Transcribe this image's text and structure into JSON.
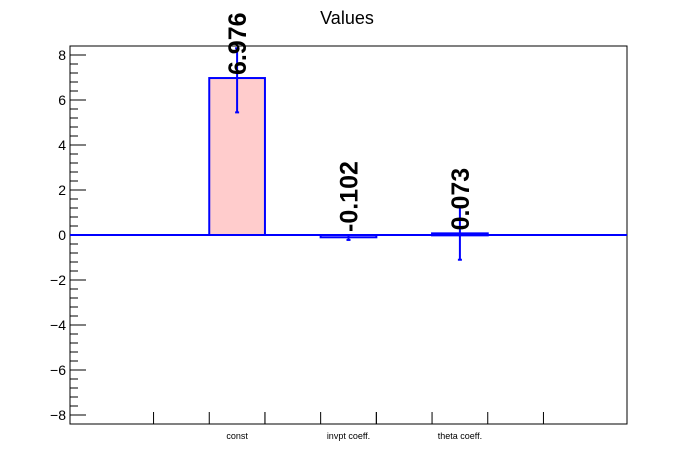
{
  "chart_data": {
    "type": "bar",
    "title": "Values",
    "xlabel": "",
    "ylabel": "",
    "categories": [
      "const",
      "invpt coeff.",
      "theta coeff."
    ],
    "values": [
      6.976,
      -0.102,
      0.073
    ],
    "value_labels": [
      "6.976",
      "-0.102",
      "0.073"
    ],
    "error_low": [
      5.45,
      -0.22,
      -1.1
    ],
    "error_high": [
      8.3,
      0.0,
      1.25
    ],
    "ylim": [
      -8.4,
      8.4
    ],
    "yticks": [
      -8,
      -6,
      -4,
      -2,
      0,
      2,
      4,
      6,
      8
    ],
    "ytick_labels": [
      "−8",
      "−6",
      "−4",
      "−2",
      "0",
      "2",
      "4",
      "6",
      "8"
    ],
    "grid": false,
    "colors": {
      "first_bar_fill": "#ffcccc",
      "bar_fill": "none",
      "bar_stroke": "#0000ff",
      "error_bar": "#0000ff",
      "zero_line": "#0000ff",
      "axis": "#000000"
    }
  }
}
